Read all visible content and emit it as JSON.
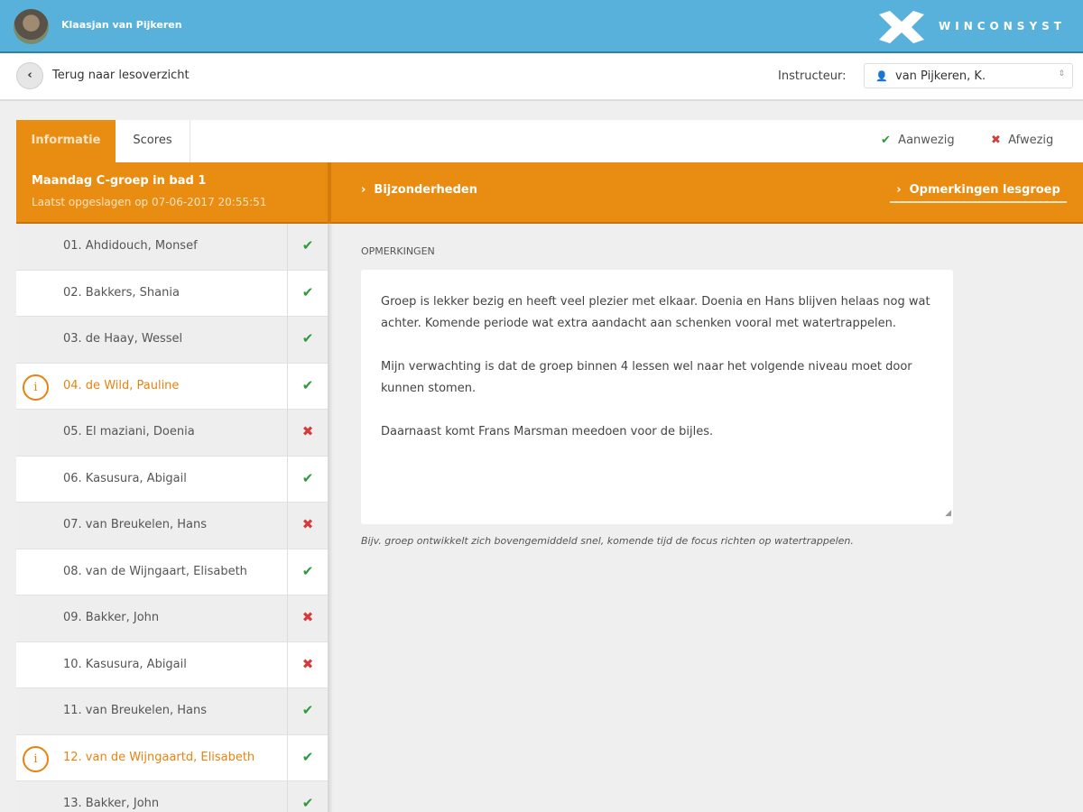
{
  "header": {
    "user_name": "Klaasjan van Pijkeren",
    "brand": "WINCONSYST",
    "color": "#57b1db"
  },
  "subheader": {
    "back_label": "Terug naar lesoverzicht",
    "instructor_label": "Instructeur:",
    "instructor_value": "van Pijkeren, K."
  },
  "tabs": [
    {
      "label": "Informatie",
      "active": true
    },
    {
      "label": "Scores",
      "active": false
    }
  ],
  "legend": {
    "present": "Aanwezig",
    "absent": "Afwezig"
  },
  "group": {
    "title": "Maandag C-groep in bad 1",
    "saved": "Laatst opgeslagen op 07-06-2017 20:55:51",
    "accent": "#e88d12"
  },
  "sections": {
    "details": "Bijzonderheden",
    "remarks_group": "Opmerkingen lesgroep"
  },
  "students": [
    {
      "name": "01.  Ahdidouch, Monsef",
      "present": true,
      "info": false
    },
    {
      "name": "02.  Bakkers, Shania",
      "present": true,
      "info": false
    },
    {
      "name": "03.  de Haay, Wessel",
      "present": true,
      "info": false
    },
    {
      "name": "04.  de Wild, Pauline",
      "present": true,
      "info": true
    },
    {
      "name": "05.  El maziani, Doenia",
      "present": false,
      "info": false
    },
    {
      "name": "06.  Kasusura, Abigail",
      "present": true,
      "info": false
    },
    {
      "name": "07.  van Breukelen, Hans",
      "present": false,
      "info": false
    },
    {
      "name": "08.  van de Wijngaart, Elisabeth",
      "present": true,
      "info": false
    },
    {
      "name": "09.  Bakker, John",
      "present": false,
      "info": false
    },
    {
      "name": "10.  Kasusura, Abigail",
      "present": false,
      "info": false
    },
    {
      "name": "11.  van Breukelen, Hans",
      "present": true,
      "info": false
    },
    {
      "name": "12.  van de Wijngaartd, Elisabeth",
      "present": true,
      "info": true
    },
    {
      "name": "13.  Bakker, John",
      "present": true,
      "info": false
    }
  ],
  "remarks": {
    "label": "OPMERKINGEN",
    "text": "Groep is lekker bezig en heeft veel plezier met elkaar. Doenia en Hans blijven helaas nog wat achter. Komende periode wat extra aandacht aan schenken vooral met watertrappelen.\n\nMijn verwachting is dat de groep binnen 4 lessen wel naar het volgende niveau moet door kunnen stomen.\n\nDaarnaast komt Frans Marsman meedoen voor de bijles.",
    "hint": "Bijv. groep ontwikkelt zich bovengemiddeld snel, komende tijd de focus richten op watertrappelen."
  }
}
